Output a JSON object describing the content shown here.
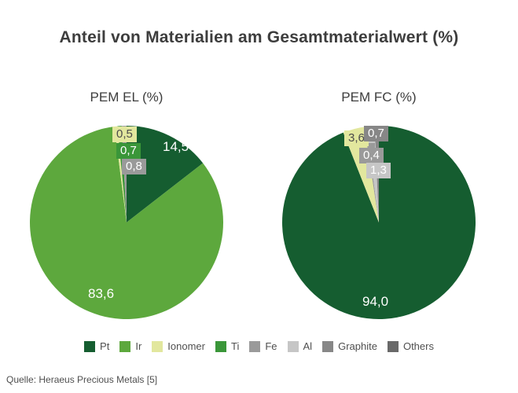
{
  "title": "Anteil von Materialien am Gesamtmaterialwert (%)",
  "source": "Quelle: Heraeus Precious Metals [5]",
  "colors": {
    "pt": "#155d30",
    "ir": "#5da83d",
    "ionomer": "#e2e79e",
    "ti": "#3a9639",
    "fe": "#9a9a9a",
    "al": "#c6c6c6",
    "graphite": "#878787",
    "others": "#696969"
  },
  "legend": {
    "items": [
      {
        "key": "pt",
        "label": "Pt"
      },
      {
        "key": "ir",
        "label": "Ir"
      },
      {
        "key": "ionomer",
        "label": "Ionomer"
      },
      {
        "key": "ti",
        "label": "Ti"
      },
      {
        "key": "fe",
        "label": "Fe"
      },
      {
        "key": "al",
        "label": "Al"
      },
      {
        "key": "graphite",
        "label": "Graphite"
      },
      {
        "key": "others",
        "label": "Others"
      }
    ]
  },
  "chart_data": [
    {
      "type": "pie",
      "title": "PEM EL (%)",
      "unit": "%",
      "start_angle_deg": 0,
      "direction": "clockwise",
      "slices": [
        {
          "material": "Pt",
          "key": "pt",
          "value": 14.5,
          "label": "14,5",
          "label_style": "inside"
        },
        {
          "material": "Ir",
          "key": "ir",
          "value": 83.6,
          "label": "83,6",
          "label_style": "inside"
        },
        {
          "material": "Ionomer",
          "key": "ionomer",
          "value": 0.5,
          "label": "0,5",
          "label_style": "box"
        },
        {
          "material": "Ti",
          "key": "ti",
          "value": 0.7,
          "label": "0,7",
          "label_style": "box"
        },
        {
          "material": "Fe",
          "key": "fe",
          "value": 0.8,
          "label": "0,8",
          "label_style": "box"
        }
      ]
    },
    {
      "type": "pie",
      "title": "PEM FC (%)",
      "unit": "%",
      "start_angle_deg": 0,
      "direction": "clockwise",
      "slices": [
        {
          "material": "Pt",
          "key": "pt",
          "value": 94.0,
          "label": "94,0",
          "label_style": "inside"
        },
        {
          "material": "Ionomer",
          "key": "ionomer",
          "value": 3.6,
          "label": "3,6",
          "label_style": "box"
        },
        {
          "material": "Fe",
          "key": "fe",
          "value": 0.4,
          "label": "0,4",
          "label_style": "box"
        },
        {
          "material": "Al",
          "key": "al",
          "value": 1.3,
          "label": "1,3",
          "label_style": "box"
        },
        {
          "material": "Graphite",
          "key": "graphite",
          "value": 0.7,
          "label": "0,7",
          "label_style": "box"
        }
      ]
    }
  ]
}
